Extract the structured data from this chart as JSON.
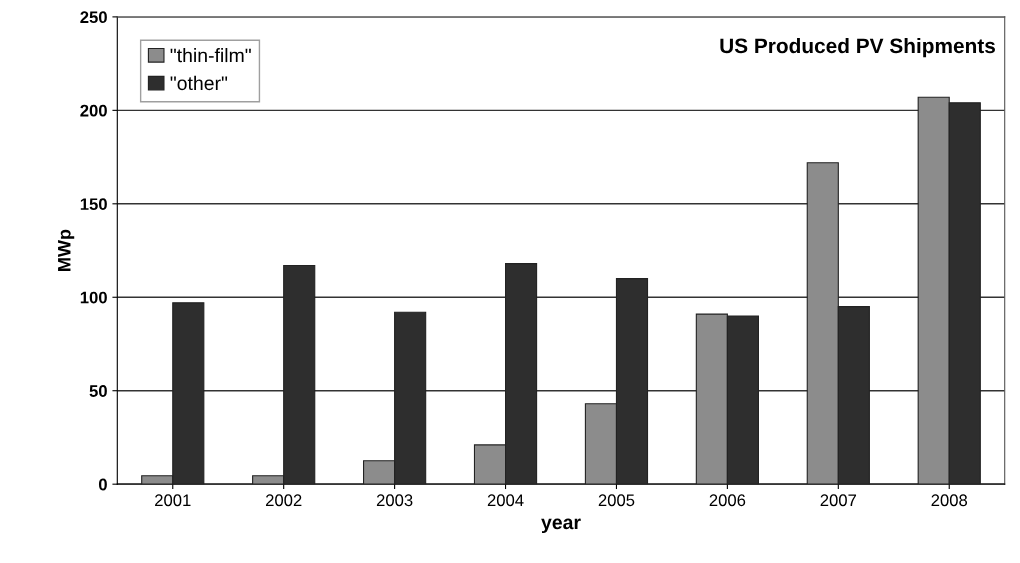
{
  "chart_data": {
    "type": "bar",
    "title": "US Produced PV Shipments",
    "xlabel": "year",
    "ylabel": "MWp",
    "categories": [
      "2001",
      "2002",
      "2003",
      "2004",
      "2005",
      "2006",
      "2007",
      "2008"
    ],
    "series": [
      {
        "name": "\"thin-film\"",
        "color": "#8c8c8c",
        "values": [
          4.5,
          4.5,
          12.5,
          21,
          43,
          91,
          172,
          207
        ]
      },
      {
        "name": "\"other\"",
        "color": "#2e2e2e",
        "values": [
          97,
          117,
          92,
          118,
          110,
          90,
          95,
          204
        ]
      }
    ],
    "ylim": [
      0,
      250
    ],
    "yticks": [
      0,
      50,
      100,
      150,
      200,
      250
    ],
    "grid": "y",
    "legend": "top left"
  }
}
